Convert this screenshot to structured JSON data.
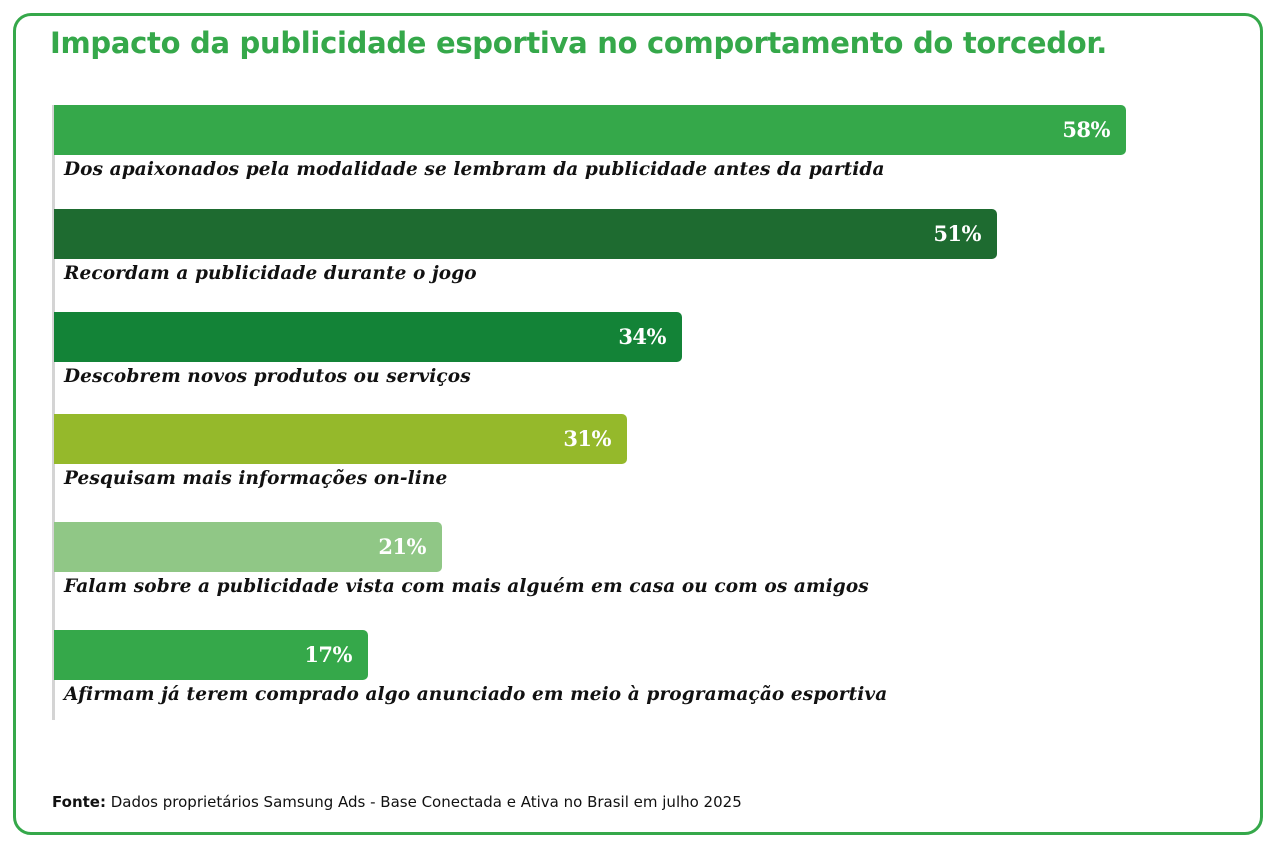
{
  "chart_data": {
    "type": "bar",
    "orientation": "horizontal",
    "title": "Impacto da publicidade esportiva no comportamento do torcedor.",
    "categories": [
      "Dos apaixonados pela modalidade se lembram da publicidade antes da partida",
      "Recordam a publicidade durante o jogo",
      "Descobrem novos produtos ou serviços",
      "Pesquisam mais informações on-line",
      "Falam sobre a publicidade vista com mais alguém em casa ou com os amigos",
      "Afirmam já terem comprado algo anunciado em meio à programação esportiva"
    ],
    "values": [
      58,
      51,
      34,
      31,
      21,
      17
    ],
    "value_labels": [
      "58%",
      "51%",
      "34%",
      "31%",
      "21%",
      "17%"
    ],
    "colors": [
      "#35a84a",
      "#1e6b30",
      "#138337",
      "#95b92b",
      "#90c786",
      "#35a84a"
    ],
    "unit": "%",
    "xlim": [
      0,
      100
    ],
    "grid": false,
    "legend": "none"
  },
  "source": {
    "label": "Fonte:",
    "text": " Dados proprietários Samsung Ads - Base Conectada e Ativa no Brasil em julho 2025"
  }
}
